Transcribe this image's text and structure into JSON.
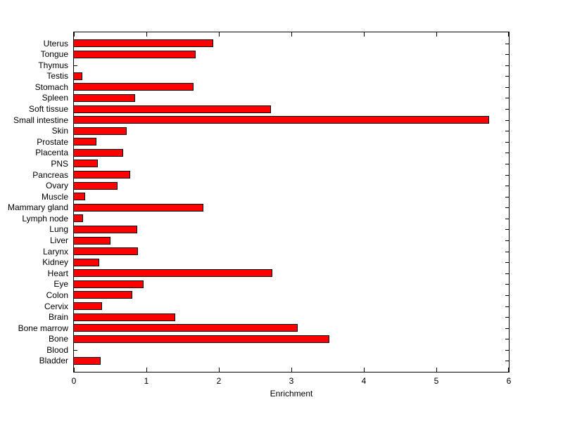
{
  "figure": {
    "background_color": "#ffffff",
    "bar_color": "#ff0000",
    "bar_edge_color": "#000000",
    "axis_color": "#000000"
  },
  "chart_data": {
    "type": "bar",
    "orientation": "horizontal",
    "title": "",
    "xlabel": "Enrichment",
    "ylabel": "",
    "xlim": [
      0,
      6
    ],
    "xticks": [
      "0",
      "1",
      "2",
      "3",
      "4",
      "5",
      "6"
    ],
    "grid": false,
    "legend": null,
    "categories": [
      "Uterus",
      "Tongue",
      "Thymus",
      "Testis",
      "Stomach",
      "Spleen",
      "Soft tissue",
      "Small intestine",
      "Skin",
      "Prostate",
      "Placenta",
      "PNS",
      "Pancreas",
      "Ovary",
      "Muscle",
      "Mammary gland",
      "Lymph node",
      "Lung",
      "Liver",
      "Larynx",
      "Kidney",
      "Heart",
      "Eye",
      "Colon",
      "Cervix",
      "Brain",
      "Bone marrow",
      "Bone",
      "Blood",
      "Bladder"
    ],
    "values": [
      1.92,
      1.68,
      0,
      0.12,
      1.65,
      0.84,
      2.72,
      5.73,
      0.73,
      0.31,
      0.68,
      0.33,
      0.78,
      0.6,
      0.16,
      1.79,
      0.13,
      0.87,
      0.5,
      0.88,
      0.35,
      2.74,
      0.96,
      0.81,
      0.39,
      1.4,
      3.09,
      3.52,
      0,
      0.37
    ]
  }
}
